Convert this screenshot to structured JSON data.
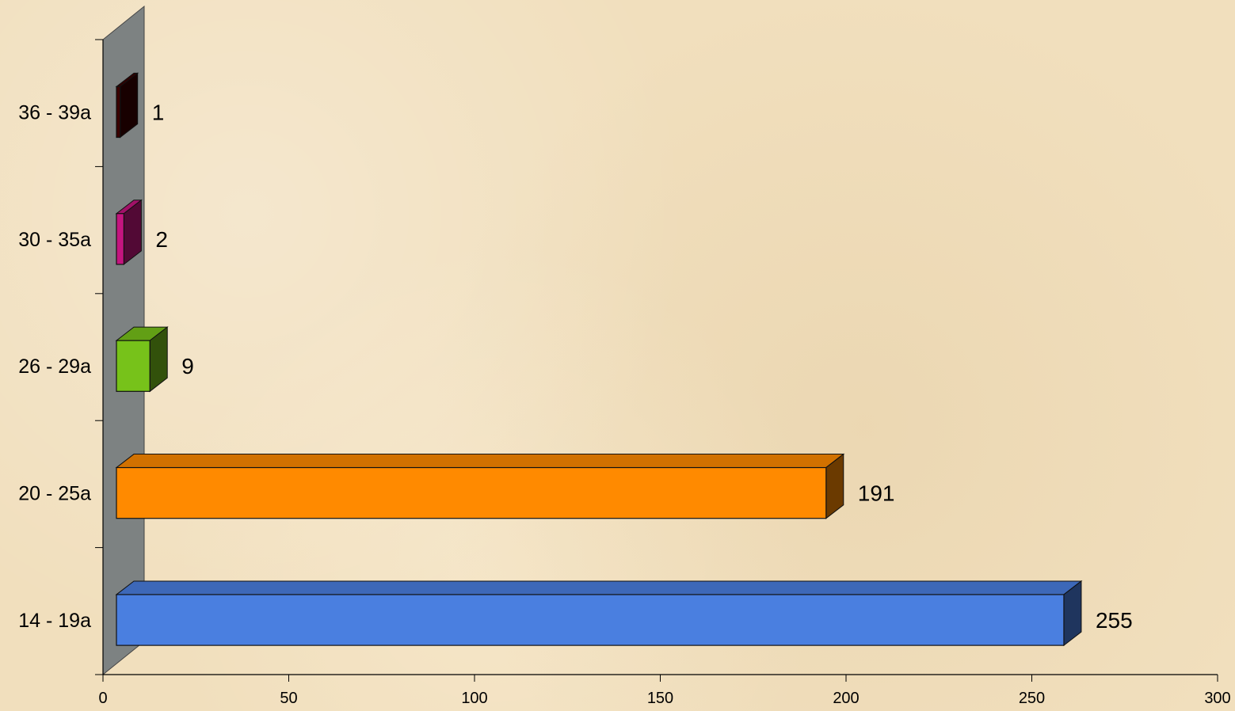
{
  "chart_data": {
    "type": "bar",
    "orientation": "horizontal",
    "style": "3d",
    "categories": [
      "14 - 19a",
      "20 - 25a",
      "26 - 29a",
      "30 - 35a",
      "36 - 39a"
    ],
    "values": [
      255,
      191,
      9,
      2,
      1
    ],
    "data_labels": [
      "255",
      "191",
      "9",
      "2",
      "1"
    ],
    "bar_colors": [
      "#4a7fe0",
      "#ff8a00",
      "#77c21a",
      "#c4157f",
      "#3a0000"
    ],
    "xlim": [
      0,
      300
    ],
    "xticks": [
      0,
      50,
      100,
      150,
      200,
      250,
      300
    ],
    "xtick_labels": [
      "0",
      "50",
      "100",
      "150",
      "200",
      "250",
      "300"
    ],
    "title": "",
    "xlabel": "",
    "ylabel": "",
    "grid": false,
    "legend": "none"
  }
}
